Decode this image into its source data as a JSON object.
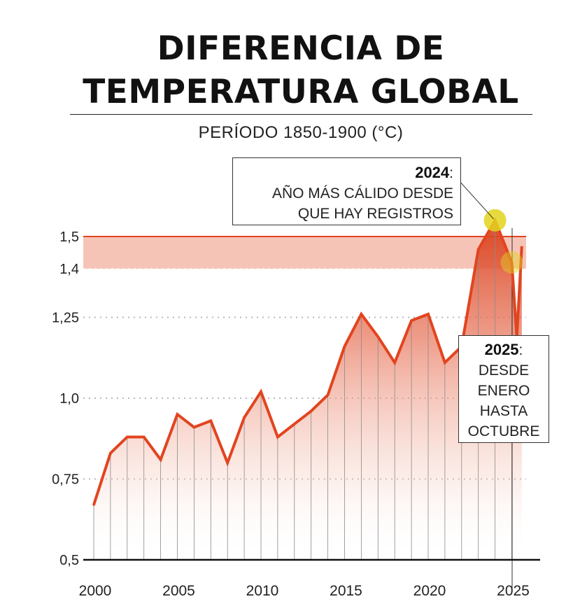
{
  "header": {
    "title_line1": "DIFERENCIA DE",
    "title_line2": "TEMPERATURA GLOBAL",
    "subtitle": "PERÍODO 1850-1900 (°C)"
  },
  "annotations": {
    "a2024": {
      "year": "2024",
      "colon": ":",
      "line1": "AÑO MÁS CÁLIDO DESDE",
      "line2": "QUE HAY REGISTROS"
    },
    "a2025": {
      "year": "2025",
      "colon": ":",
      "line1": "DESDE",
      "line2": "ENERO",
      "line3": "HASTA",
      "line4": "OCTUBRE"
    }
  },
  "colors": {
    "line": "#e2441f",
    "band_fill": "#f4b5a5",
    "band_line": "#e2441f",
    "highlight": "#e3d41d",
    "grid": "#b8b8b8",
    "axis": "#111111"
  },
  "chart_data": {
    "type": "area",
    "title": "DIFERENCIA DE TEMPERATURA GLOBAL",
    "subtitle": "PERÍODO 1850-1900 (°C)",
    "xlabel": "",
    "ylabel": "",
    "x": [
      2000,
      2001,
      2002,
      2003,
      2004,
      2005,
      2006,
      2007,
      2008,
      2009,
      2010,
      2011,
      2012,
      2013,
      2014,
      2015,
      2016,
      2017,
      2018,
      2019,
      2020,
      2021,
      2022,
      2023,
      2024,
      2025
    ],
    "series": [
      {
        "name": "Diferencia de temperatura global (°C)",
        "values": [
          0.67,
          0.83,
          0.88,
          0.88,
          0.81,
          0.95,
          0.91,
          0.93,
          0.8,
          0.94,
          1.02,
          0.88,
          0.92,
          0.96,
          1.01,
          1.16,
          1.26,
          1.19,
          1.11,
          1.24,
          1.26,
          1.11,
          1.16,
          1.46,
          1.55,
          1.42
        ]
      }
    ],
    "trailing_segment": {
      "x_start": 2025,
      "x_end": 2025.6,
      "values": [
        1.42,
        1.19,
        1.47
      ]
    },
    "x_ticks": [
      2000,
      2005,
      2010,
      2015,
      2020,
      2025
    ],
    "x_tick_labels": [
      "2000",
      "2005",
      "2010",
      "2015",
      "2020",
      "2025"
    ],
    "y_ticks": [
      0.5,
      0.75,
      1.0,
      1.25,
      1.4,
      1.5
    ],
    "y_tick_labels": [
      "0,5",
      "0,75",
      "1,0",
      "1,25",
      "1,4",
      "1,5"
    ],
    "ylim": [
      0.5,
      1.5
    ],
    "threshold_band": [
      1.4,
      1.5
    ],
    "highlighted_points": [
      {
        "x": 2024,
        "y": 1.55
      },
      {
        "x": 2025,
        "y": 1.42
      }
    ],
    "grid": true,
    "legend": "none"
  }
}
